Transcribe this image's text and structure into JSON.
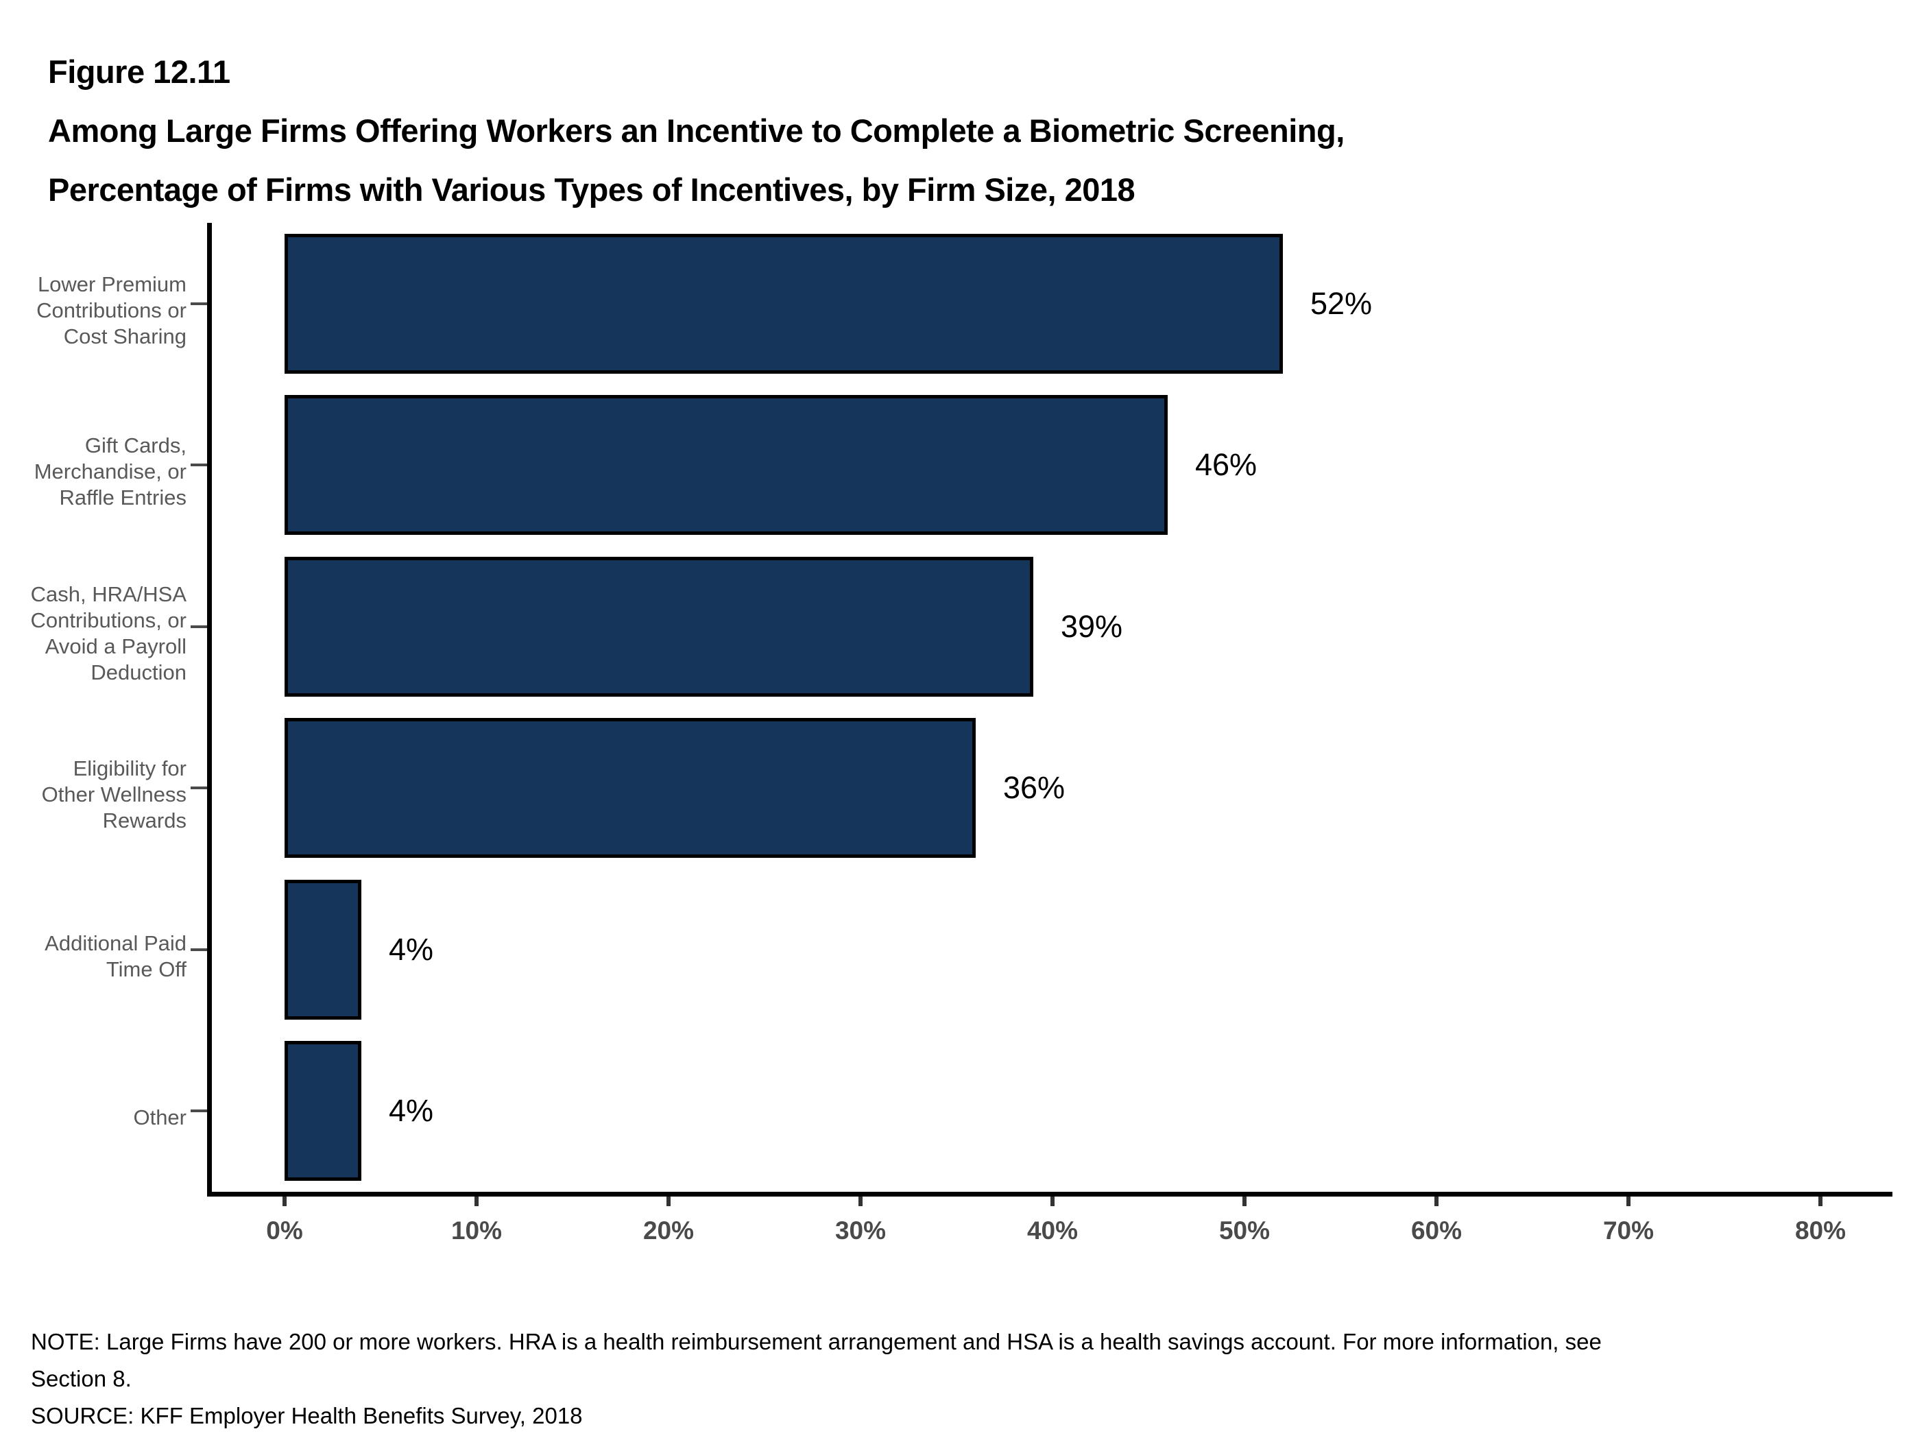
{
  "figure": {
    "number": "Figure 12.11",
    "title_line1": "Among Large Firms Offering Workers an Incentive to Complete a Biometric Screening,",
    "title_line2": "Percentage of Firms with Various Types of Incentives, by Firm Size, 2018"
  },
  "chart_data": {
    "type": "bar",
    "orientation": "horizontal",
    "title": "Among Large Firms Offering Workers an Incentive to Complete a Biometric Screening, Percentage of Firms with Various Types of Incentives, by Firm Size, 2018",
    "categories": [
      "Lower Premium Contributions or Cost Sharing",
      "Gift Cards, Merchandise, or Raffle Entries",
      "Cash, HRA/HSA Contributions, or Avoid a Payroll Deduction",
      "Eligibility for Other Wellness Rewards",
      "Additional Paid Time Off",
      "Other"
    ],
    "category_lines": [
      [
        "Lower Premium",
        "Contributions or",
        "Cost Sharing"
      ],
      [
        "Gift Cards,",
        "Merchandise, or",
        "Raffle Entries"
      ],
      [
        "Cash, HRA/HSA",
        "Contributions, or",
        "Avoid a Payroll",
        "Deduction"
      ],
      [
        "Eligibility for",
        "Other Wellness",
        "Rewards"
      ],
      [
        "Additional Paid",
        "Time Off"
      ],
      [
        "Other"
      ]
    ],
    "values": [
      52,
      46,
      39,
      36,
      4,
      4
    ],
    "value_labels": [
      "52%",
      "46%",
      "39%",
      "36%",
      "4%",
      "4%"
    ],
    "x_ticks": [
      "0%",
      "10%",
      "20%",
      "30%",
      "40%",
      "50%",
      "60%",
      "70%",
      "80%"
    ],
    "x_tick_values": [
      0,
      10,
      20,
      30,
      40,
      50,
      60,
      70,
      80
    ],
    "xlim": [
      0,
      84
    ],
    "grid": false,
    "legend": false,
    "bar_color": "#15355B",
    "bar_border_color": "#000000",
    "category_label_color": "#595959",
    "axis_tick_label_color": "#4a4a4a"
  },
  "notes": {
    "note_line1": "NOTE: Large Firms have 200 or more workers. HRA is a health reimbursement arrangement and HSA is a health savings account. For more information, see",
    "note_line2": "Section 8.",
    "source": "SOURCE: KFF Employer Health Benefits Survey, 2018"
  }
}
